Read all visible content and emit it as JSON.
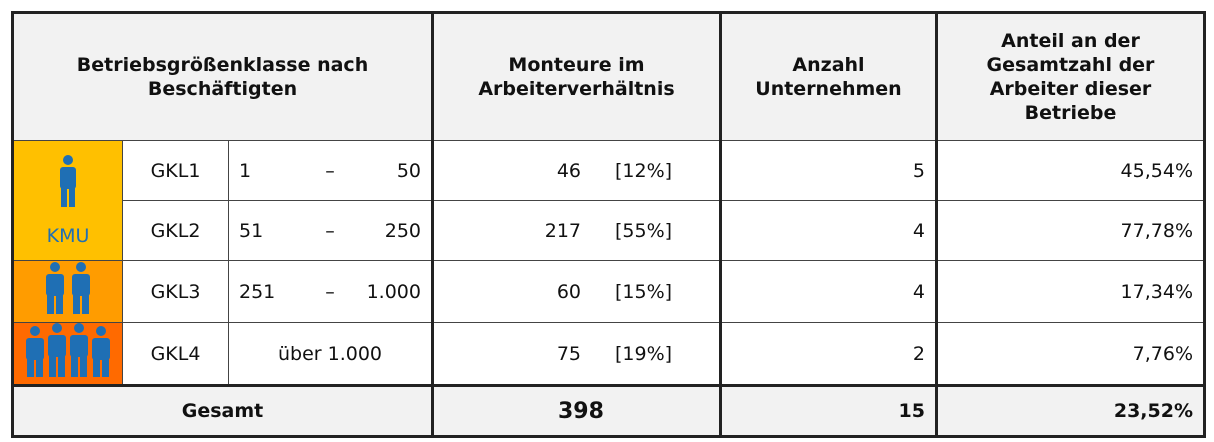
{
  "header": {
    "class": "Betriebsgrößenklasse nach Beschäftigten",
    "workers": "Monteure im Arbeiterverhältnis",
    "companies": "Anzahl Unternehmen",
    "share": "Anteil an der Gesamtzahl der Arbeiter dieser Betriebe"
  },
  "kmu_label": "KMU",
  "rows": [
    {
      "gkl": "GKL1",
      "from": "1",
      "dash": "–",
      "to": "50",
      "workers": "46",
      "pct": "[12%]",
      "companies": "5",
      "share": "45,54%"
    },
    {
      "gkl": "GKL2",
      "from": "51",
      "dash": "–",
      "to": "250",
      "workers": "217",
      "pct": "[55%]",
      "companies": "4",
      "share": "77,78%"
    },
    {
      "gkl": "GKL3",
      "from": "251",
      "dash": "–",
      "to": "1.000",
      "workers": "60",
      "pct": "[15%]",
      "companies": "4",
      "share": "17,34%"
    },
    {
      "gkl": "GKL4",
      "range": "über 1.000",
      "workers": "75",
      "pct": "[19%]",
      "companies": "2",
      "share": "7,76%"
    }
  ],
  "total": {
    "label": "Gesamt",
    "workers": "398",
    "companies": "15",
    "share": "23,52%"
  }
}
